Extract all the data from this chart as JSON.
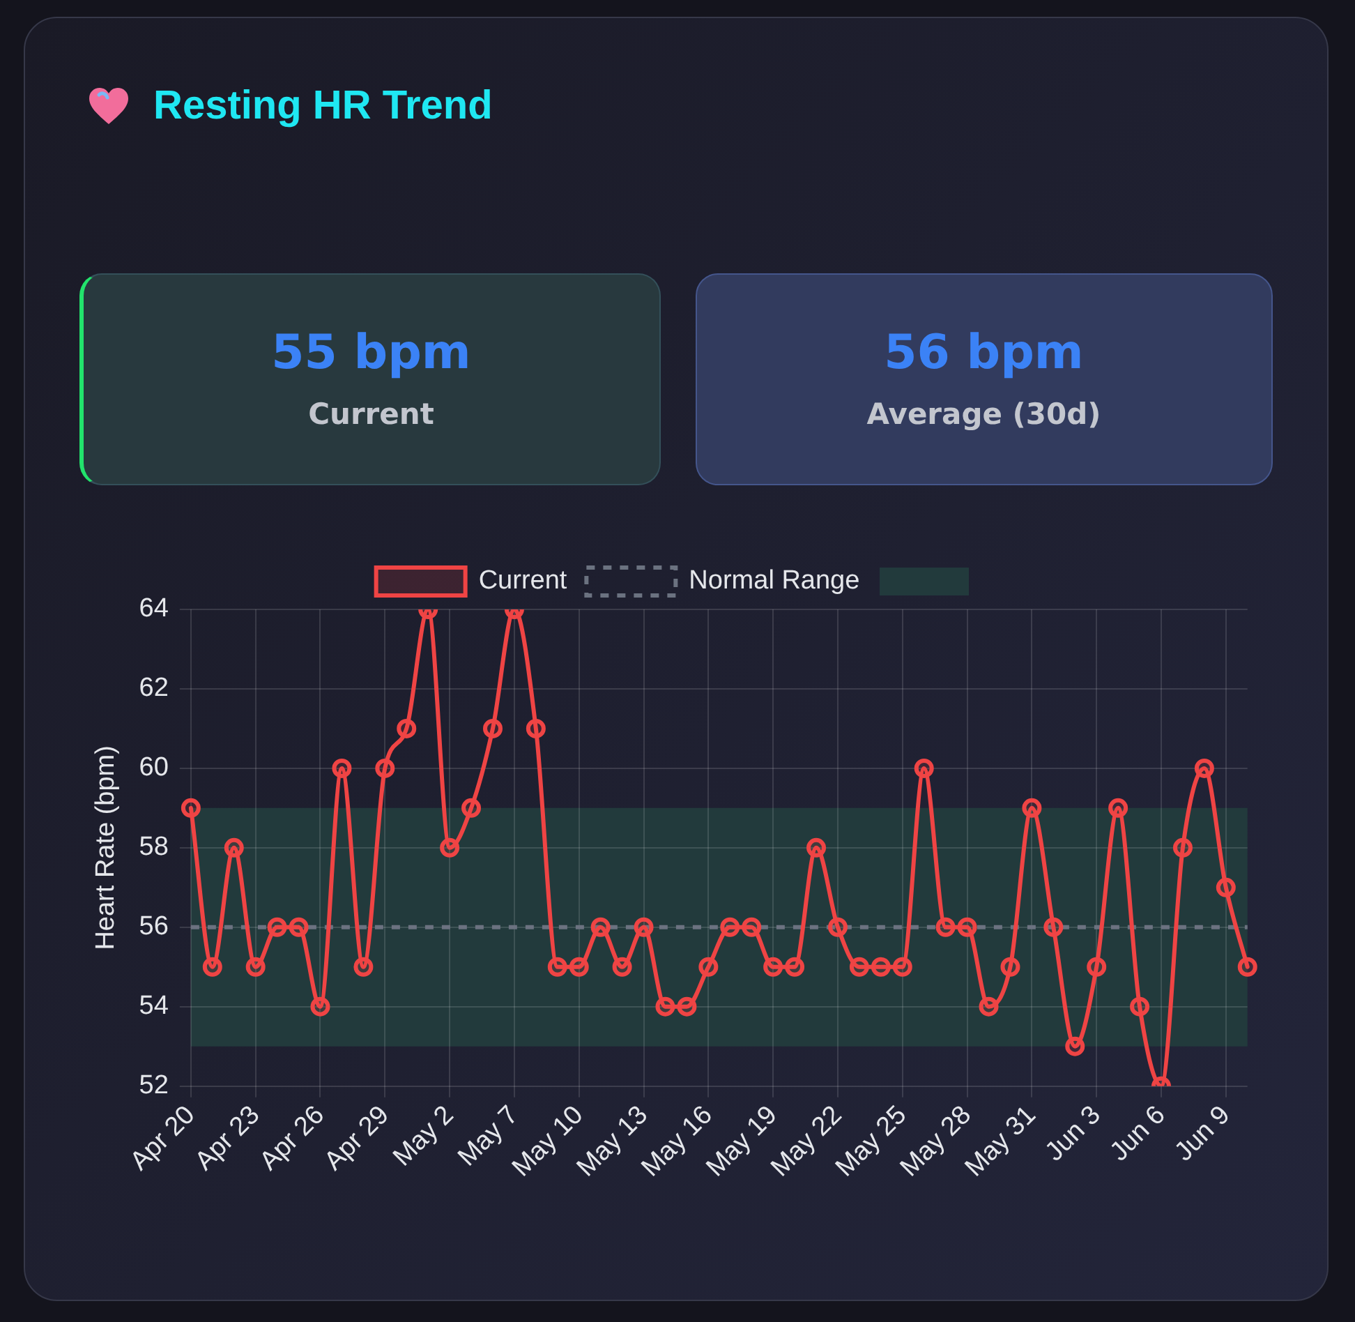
{
  "chart_data": {
    "type": "line",
    "title": "Resting HR Trend",
    "annotations": [
      "55 bpm",
      "Current",
      "56 bpm",
      "Average (30d)"
    ],
    "ylabel": "Heart Rate (bpm)",
    "categories": [
      "Apr 20",
      null,
      null,
      "Apr 23",
      null,
      null,
      "Apr 26",
      null,
      null,
      "Apr 29",
      null,
      null,
      "May 2",
      null,
      null,
      "May 7",
      null,
      null,
      "May 10",
      null,
      null,
      "May 13",
      null,
      null,
      "May 16",
      null,
      null,
      "May 19",
      null,
      null,
      "May 22",
      null,
      null,
      "May 25",
      null,
      null,
      "May 28",
      null,
      null,
      "May 31",
      null,
      null,
      "Jun 3",
      null,
      null,
      "Jun 6",
      null,
      null,
      "Jun 9",
      null
    ],
    "series": [
      {
        "name": "Current",
        "color": "#ef4444",
        "values": [
          59,
          55,
          58,
          55,
          56,
          56,
          54,
          60,
          55,
          60,
          61,
          64,
          58,
          59,
          61,
          64,
          61,
          55,
          55,
          56,
          55,
          56,
          54,
          54,
          55,
          56,
          56,
          55,
          55,
          58,
          56,
          55,
          55,
          55,
          60,
          56,
          56,
          54,
          55,
          59,
          56,
          53,
          55,
          59,
          54,
          52,
          58,
          60,
          57,
          55
        ]
      }
    ],
    "ylim": [
      52,
      64
    ],
    "yticks": [
      52,
      54,
      56,
      58,
      60,
      62,
      64
    ],
    "ref_lines": [
      {
        "axis": "y",
        "value": 56,
        "label": "Normal Range",
        "color": "#6b7280",
        "line_style": "dashed"
      }
    ],
    "bands": [
      {
        "axis": "y",
        "from": 53,
        "to": 59,
        "color": "#223a3c"
      }
    ],
    "grid": true,
    "legend": "top",
    "marker": "circle"
  }
}
